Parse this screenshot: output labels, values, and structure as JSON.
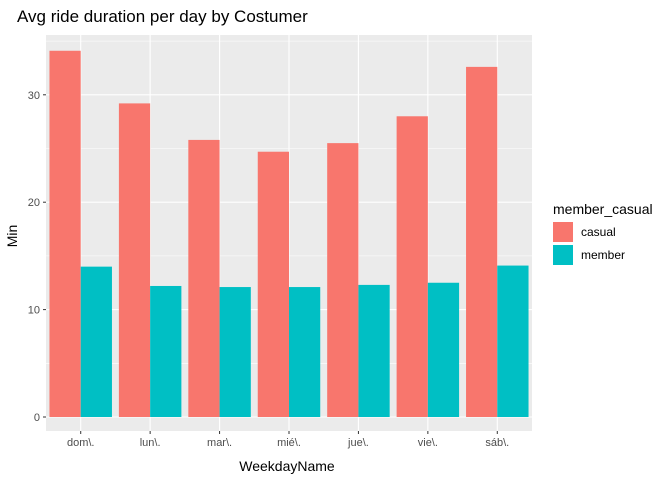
{
  "chart_data": {
    "type": "bar",
    "title": "Avg ride duration per day by Costumer",
    "xlabel": "WeekdayName",
    "ylabel": "Min",
    "categories": [
      "dom\\.",
      "lun\\.",
      "mar\\.",
      "mié\\.",
      "jue\\.",
      "vie\\.",
      "sáb\\."
    ],
    "series": [
      {
        "name": "casual",
        "color": "#F8766D",
        "values": [
          34.1,
          29.2,
          25.8,
          24.7,
          25.5,
          28.0,
          32.6
        ]
      },
      {
        "name": "member",
        "color": "#00BFC4",
        "values": [
          14.0,
          12.2,
          12.1,
          12.1,
          12.3,
          12.5,
          14.1
        ]
      }
    ],
    "ylim": [
      0,
      35
    ],
    "yticks": [
      0,
      10,
      20,
      30
    ],
    "grid": true,
    "panel_background": "#EBEBEB",
    "legend": {
      "title": "member_casual",
      "placement": "right"
    }
  }
}
